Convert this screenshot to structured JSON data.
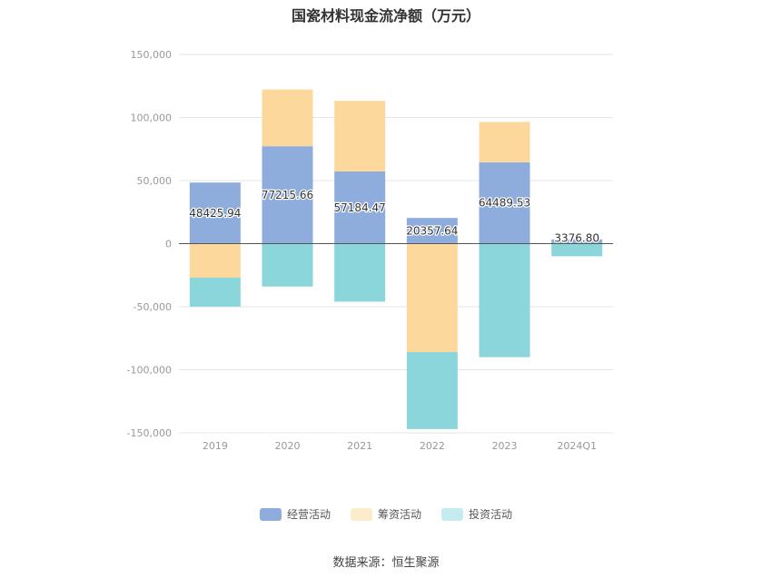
{
  "chart_data": {
    "type": "bar",
    "stacked": true,
    "title": "国瓷材料现金流净额（万元）",
    "categories": [
      "2019",
      "2020",
      "2021",
      "2022",
      "2023",
      "2024Q1"
    ],
    "series": [
      {
        "name": "经营活动",
        "color": "#8eacdc",
        "values": [
          48425.94,
          77215.66,
          57184.47,
          20357.64,
          64489.53,
          3376.8
        ],
        "labels": [
          "48425.94",
          "77215.66",
          "57184.47",
          "20357.64",
          "64489.53",
          "3376.80"
        ]
      },
      {
        "name": "筹资活动",
        "color": "#fdd89c",
        "values": [
          -27000,
          45000,
          56000,
          -86000,
          32000,
          0
        ]
      },
      {
        "name": "投资活动",
        "color": "#8ad6da",
        "values": [
          -23000,
          -34000,
          -46000,
          -61000,
          -90000,
          -10000
        ]
      }
    ],
    "yticks": [
      "150,000",
      "100,000",
      "50,000",
      "0",
      "-50,000",
      "-100,000",
      "-150,000"
    ],
    "ylim": [
      -150000,
      150000
    ],
    "legend_position": "bottom",
    "grid": true
  },
  "source": "数据来源：恒生聚源"
}
